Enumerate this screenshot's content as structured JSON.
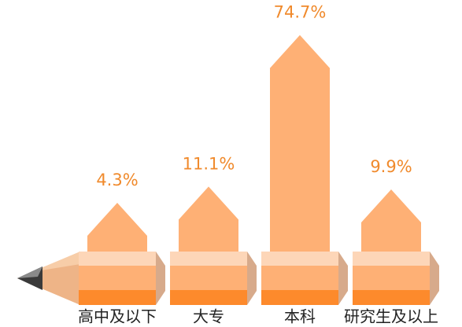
{
  "chart_data": {
    "type": "bar",
    "categories": [
      "高中及以下",
      "大专",
      "本科",
      "研究生及以上"
    ],
    "values": [
      4.3,
      11.1,
      74.7,
      9.9
    ],
    "value_labels": [
      "4.3%",
      "11.1%",
      "74.7%",
      "9.9%"
    ],
    "color": "#feb075"
  }
}
